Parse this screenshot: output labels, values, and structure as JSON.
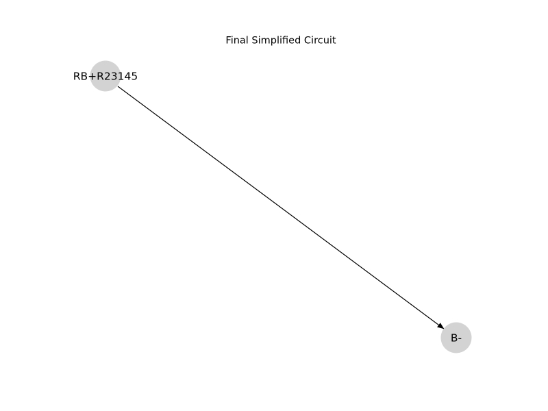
{
  "diagram": {
    "title": "Final Simplified Circuit",
    "node_color": "#d3d3d3",
    "edge_color": "#000000",
    "directed": true,
    "nodes": [
      {
        "id": "n1",
        "label": "RB+R23145"
      },
      {
        "id": "n2",
        "label": "B-"
      }
    ],
    "edges": [
      {
        "from": "n1",
        "to": "n2"
      }
    ]
  }
}
